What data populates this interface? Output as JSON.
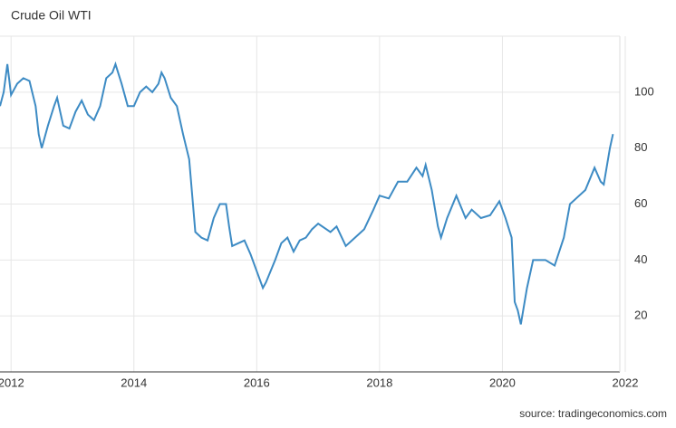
{
  "chart_data": {
    "type": "line",
    "title": "Crude Oil WTI",
    "source": "source: tradingeconomics.com",
    "x": [
      2011.82,
      2011.88,
      2011.94,
      2012.0,
      2012.1,
      2012.2,
      2012.3,
      2012.4,
      2012.45,
      2012.5,
      2012.6,
      2012.7,
      2012.75,
      2012.85,
      2012.95,
      2013.05,
      2013.15,
      2013.25,
      2013.35,
      2013.45,
      2013.55,
      2013.65,
      2013.7,
      2013.8,
      2013.9,
      2014.0,
      2014.1,
      2014.2,
      2014.3,
      2014.4,
      2014.45,
      2014.5,
      2014.6,
      2014.7,
      2014.8,
      2014.9,
      2015.0,
      2015.1,
      2015.2,
      2015.3,
      2015.4,
      2015.5,
      2015.55,
      2015.6,
      2015.7,
      2015.8,
      2015.9,
      2016.0,
      2016.1,
      2016.15,
      2016.3,
      2016.4,
      2016.5,
      2016.6,
      2016.7,
      2016.8,
      2016.9,
      2017.0,
      2017.2,
      2017.3,
      2017.45,
      2017.6,
      2017.75,
      2017.9,
      2018.0,
      2018.15,
      2018.3,
      2018.45,
      2018.6,
      2018.7,
      2018.75,
      2018.85,
      2018.95,
      2019.0,
      2019.1,
      2019.25,
      2019.4,
      2019.5,
      2019.65,
      2019.8,
      2019.95,
      2020.05,
      2020.15,
      2020.2,
      2020.25,
      2020.3,
      2020.4,
      2020.5,
      2020.7,
      2020.85,
      2021.0,
      2021.1,
      2021.2,
      2021.35,
      2021.5,
      2021.6,
      2021.65,
      2021.75,
      2021.8
    ],
    "series": [
      {
        "name": "Crude Oil WTI",
        "color": "#3d8bc4",
        "values": [
          95,
          100,
          110,
          99,
          103,
          105,
          104,
          95,
          85,
          80,
          88,
          95,
          98,
          88,
          87,
          93,
          97,
          92,
          90,
          95,
          105,
          107,
          110,
          103,
          95,
          95,
          100,
          102,
          100,
          103,
          107,
          105,
          98,
          95,
          85,
          76,
          50,
          48,
          47,
          55,
          60,
          60,
          52,
          45,
          46,
          47,
          42,
          36,
          30,
          32,
          40,
          46,
          48,
          43,
          47,
          48,
          51,
          53,
          50,
          52,
          45,
          48,
          51,
          58,
          63,
          62,
          68,
          68,
          73,
          70,
          74,
          65,
          52,
          48,
          55,
          63,
          55,
          58,
          55,
          56,
          61,
          55,
          48,
          25,
          22,
          17,
          30,
          40,
          40,
          38,
          48,
          60,
          62,
          65,
          73,
          68,
          67,
          80,
          85
        ]
      }
    ],
    "xlim": [
      2011.82,
      2022.0
    ],
    "xticks": [
      2012,
      2014,
      2016,
      2018,
      2020,
      2022
    ],
    "ylim": [
      0,
      120
    ],
    "yticks": [
      20,
      40,
      60,
      80,
      100
    ],
    "grid": true
  }
}
